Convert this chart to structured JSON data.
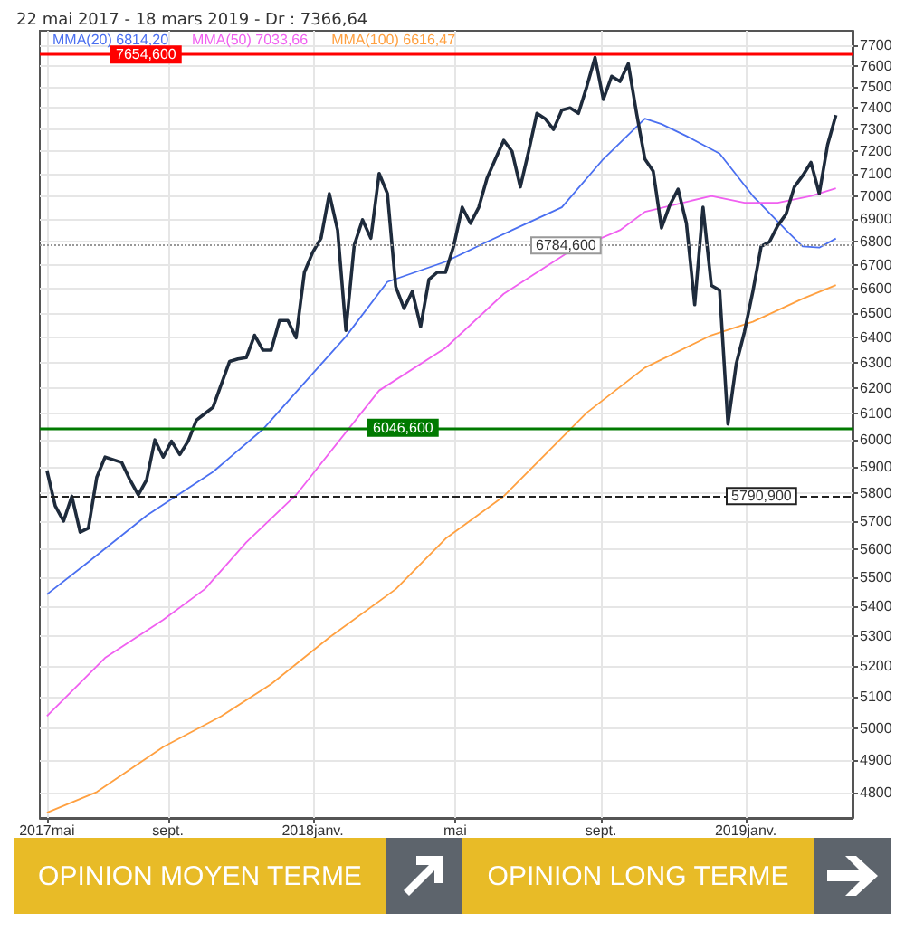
{
  "chart_data": {
    "type": "line",
    "title": "22 mai 2017 - 18 mars 2019 - Dr : 7366,64",
    "log": "y",
    "grid": true,
    "legend": "top left",
    "marker": "none",
    "line_style": "solid",
    "xlim": [
      "2017-05-16",
      "2019-04-01"
    ],
    "xticks": [
      {
        "value": "2017-05-22",
        "label": "2017mai"
      },
      {
        "value": "2017-09-01",
        "label": "sept."
      },
      {
        "value": "2018-01-01",
        "label": "2018janv."
      },
      {
        "value": "2018-05-01",
        "label": "mai"
      },
      {
        "value": "2018-09-01",
        "label": "sept."
      },
      {
        "value": "2019-01-01",
        "label": "2019janv."
      }
    ],
    "ylim": [
      4725,
      7770
    ],
    "yticks": [
      4800,
      4900,
      5000,
      5100,
      5200,
      5300,
      5400,
      5500,
      5600,
      5700,
      5800,
      5900,
      6000,
      6100,
      6200,
      6300,
      6400,
      6500,
      6600,
      6700,
      6800,
      6900,
      7000,
      7100,
      7200,
      7300,
      7400,
      7500,
      7600,
      7700
    ],
    "x": [
      "2017-05-22",
      "2017-05-29",
      "2017-06-05",
      "2017-06-12",
      "2017-06-19",
      "2017-06-26",
      "2017-07-03",
      "2017-07-10",
      "2017-07-17",
      "2017-07-24",
      "2017-07-31",
      "2017-08-07",
      "2017-08-14",
      "2017-08-21",
      "2017-08-28",
      "2017-09-04",
      "2017-09-11",
      "2017-09-18",
      "2017-09-25",
      "2017-10-02",
      "2017-10-09",
      "2017-10-16",
      "2017-10-23",
      "2017-10-30",
      "2017-11-06",
      "2017-11-13",
      "2017-11-20",
      "2017-11-27",
      "2017-12-04",
      "2017-12-11",
      "2017-12-18",
      "2017-12-25",
      "2018-01-01",
      "2018-01-08",
      "2018-01-15",
      "2018-01-22",
      "2018-01-29",
      "2018-02-05",
      "2018-02-12",
      "2018-02-19",
      "2018-02-26",
      "2018-03-05",
      "2018-03-12",
      "2018-03-19",
      "2018-03-26",
      "2018-04-02",
      "2018-04-09",
      "2018-04-16",
      "2018-04-23",
      "2018-04-30",
      "2018-05-07",
      "2018-05-14",
      "2018-05-21",
      "2018-05-28",
      "2018-06-04",
      "2018-06-11",
      "2018-06-18",
      "2018-06-25",
      "2018-07-02",
      "2018-07-09",
      "2018-07-16",
      "2018-07-23",
      "2018-07-30",
      "2018-08-06",
      "2018-08-13",
      "2018-08-20",
      "2018-08-27",
      "2018-09-03",
      "2018-09-10",
      "2018-09-17",
      "2018-09-24",
      "2018-10-01",
      "2018-10-08",
      "2018-10-15",
      "2018-10-22",
      "2018-10-29",
      "2018-11-05",
      "2018-11-12",
      "2018-11-19",
      "2018-11-26",
      "2018-12-03",
      "2018-12-10",
      "2018-12-17",
      "2018-12-24",
      "2018-12-31",
      "2019-01-07",
      "2019-01-14",
      "2019-01-21",
      "2019-01-28",
      "2019-02-04",
      "2019-02-11",
      "2019-02-18",
      "2019-02-25",
      "2019-03-04",
      "2019-03-11",
      "2019-03-18"
    ],
    "series": [
      {
        "color": "#1e2b3c",
        "values": [
          5885,
          5755,
          5700,
          5790,
          5660,
          5675,
          5860,
          5935,
          5925,
          5915,
          5850,
          5795,
          5850,
          6000,
          5935,
          5995,
          5945,
          5995,
          6075,
          6100,
          6125,
          6215,
          6305,
          6315,
          6320,
          6410,
          6350,
          6350,
          6470,
          6470,
          6400,
          6670,
          6755,
          6815,
          7010,
          6850,
          6430,
          6785,
          6895,
          6815,
          7100,
          7010,
          6610,
          6520,
          6590,
          6445,
          6640,
          6670,
          6670,
          6785,
          6950,
          6880,
          6950,
          7080,
          7165,
          7250,
          7200,
          7040,
          7200,
          7375,
          7350,
          7300,
          7390,
          7400,
          7375,
          7500,
          7640,
          7440,
          7550,
          7525,
          7610,
          7375,
          7165,
          7110,
          6860,
          6960,
          7030,
          6880,
          6535,
          6950,
          6615,
          6595,
          6060,
          6295,
          6425,
          6590,
          6780,
          6800,
          6870,
          6920,
          7040,
          7090,
          7150,
          7010,
          7230,
          7366.64
        ]
      },
      {
        "name": "MMA(20) 6814,20",
        "color": "#4a6ff0",
        "x": [
          "2017-05-22",
          "2017-06-26",
          "2017-08-14",
          "2017-10-09",
          "2017-11-20",
          "2017-12-25",
          "2018-01-29",
          "2018-03-05",
          "2018-04-23",
          "2018-05-28",
          "2018-06-18",
          "2018-07-30",
          "2018-09-03",
          "2018-10-08",
          "2018-10-22",
          "2018-11-12",
          "2018-12-10",
          "2019-01-07",
          "2019-02-04",
          "2019-02-18",
          "2019-03-04",
          "2019-03-18"
        ],
        "values": [
          5442,
          5555,
          5720,
          5880,
          6040,
          6220,
          6405,
          6630,
          6715,
          6800,
          6850,
          6950,
          7165,
          7350,
          7325,
          7270,
          7190,
          7000,
          6850,
          6780,
          6775,
          6814.2
        ]
      },
      {
        "name": "MMA(50) 7033,66",
        "color": "#f060f0",
        "x": [
          "2017-05-22",
          "2017-07-10",
          "2017-08-28",
          "2017-10-02",
          "2017-11-06",
          "2017-12-18",
          "2018-02-26",
          "2018-04-23",
          "2018-06-11",
          "2018-08-06",
          "2018-09-17",
          "2018-10-08",
          "2018-12-03",
          "2018-12-31",
          "2019-01-28",
          "2019-02-25",
          "2019-03-18"
        ],
        "values": [
          5039,
          5228,
          5355,
          5460,
          5624,
          5795,
          6190,
          6359,
          6580,
          6760,
          6850,
          6930,
          7000,
          6970,
          6970,
          7000,
          7033.66
        ]
      },
      {
        "name": "MMA(100) 6616,47",
        "color": "#ffa040",
        "x": [
          "2017-05-22",
          "2017-07-03",
          "2017-08-28",
          "2017-10-16",
          "2017-11-27",
          "2018-01-15",
          "2018-03-12",
          "2018-04-23",
          "2018-06-11",
          "2018-08-20",
          "2018-10-08",
          "2018-12-03",
          "2019-01-07",
          "2019-02-18",
          "2019-03-18"
        ],
        "values": [
          4741,
          4803,
          4942,
          5039,
          5142,
          5296,
          5460,
          5637,
          5790,
          6104,
          6280,
          6410,
          6465,
          6560,
          6616.47
        ]
      }
    ],
    "ref_lines": [
      {
        "axis": "y",
        "value": 7654.6,
        "label": "7654,600",
        "color": "#ff0000",
        "line_style": "solid"
      },
      {
        "axis": "y",
        "value": 6784.6,
        "label": "6784,600",
        "color": "#999999",
        "line_style": "dotted"
      },
      {
        "axis": "y",
        "value": 6046.6,
        "label": "6046,600",
        "color": "#007a00",
        "line_style": "solid"
      },
      {
        "axis": "y",
        "value": 5790.9,
        "label": "5790,900",
        "color": "#222222",
        "line_style": "dashed"
      }
    ],
    "annotations": [
      "OPINION MOYEN TERME",
      "OPINION LONG TERME"
    ]
  }
}
